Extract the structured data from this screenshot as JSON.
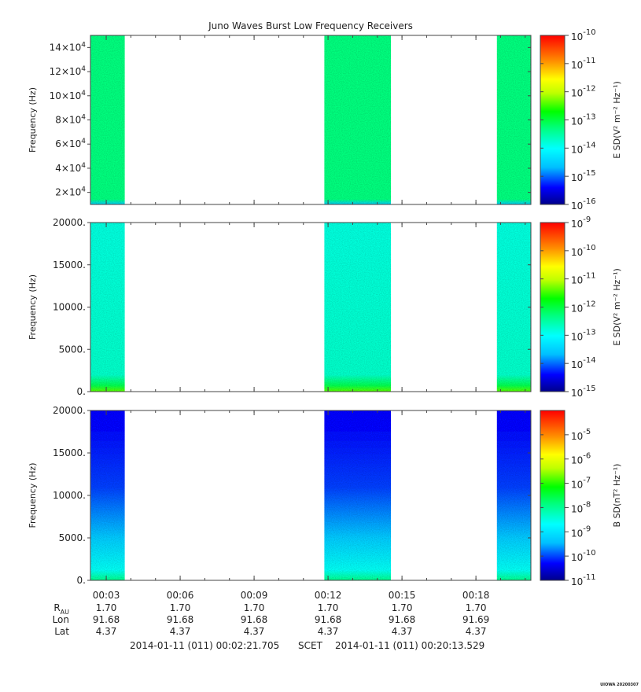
{
  "chart_data": {
    "type": "heatmap",
    "title": "Juno Waves Burst Low Frequency Receivers",
    "x_ticks": [
      "00:03",
      "00:06",
      "00:09",
      "00:12",
      "00:15",
      "00:18"
    ],
    "x_tick_minutes": [
      3,
      6,
      9,
      12,
      15,
      18
    ],
    "x_range_minutes": [
      2.36,
      20.23
    ],
    "data_bursts_minutes": [
      [
        2.36,
        3.75
      ],
      [
        11.85,
        14.55
      ],
      [
        18.85,
        20.23
      ]
    ],
    "panels": [
      {
        "id": "top",
        "ylabel": "Frequency (Hz)",
        "ylim": [
          10000,
          150000
        ],
        "y_ticks": [
          {
            "value": 20000,
            "mant": "2×10",
            "exp": "4"
          },
          {
            "value": 40000,
            "mant": "4×10",
            "exp": "4"
          },
          {
            "value": 60000,
            "mant": "6×10",
            "exp": "4"
          },
          {
            "value": 80000,
            "mant": "8×10",
            "exp": "4"
          },
          {
            "value": 100000,
            "mant": "10×10",
            "exp": "4"
          },
          {
            "value": 120000,
            "mant": "12×10",
            "exp": "4"
          },
          {
            "value": 140000,
            "mant": "14×10",
            "exp": "4"
          }
        ],
        "colorbar_label": "E SD(V² m⁻² Hz⁻¹)",
        "colorbar_exp_range": [
          -16,
          -10
        ],
        "colorbar_ticks": [
          "-10",
          "-11",
          "-12",
          "-13",
          "-14",
          "-15",
          "-16"
        ],
        "bands": [
          {
            "f": 0.0,
            "level": 0.25
          },
          {
            "f": 0.03,
            "level": 0.45
          },
          {
            "f": 1.0,
            "level": 0.45
          }
        ]
      },
      {
        "id": "middle",
        "ylabel": "Frequency (Hz)",
        "ylim": [
          0,
          20000
        ],
        "y_ticks": [
          {
            "value": 0,
            "label": "0."
          },
          {
            "value": 5000,
            "label": "5000."
          },
          {
            "value": 10000,
            "label": "10000."
          },
          {
            "value": 15000,
            "label": "15000."
          },
          {
            "value": 20000,
            "label": "20000."
          }
        ],
        "colorbar_label": "E SD(V² m⁻² Hz⁻¹)",
        "colorbar_exp_range": [
          -15,
          -9
        ],
        "colorbar_ticks": [
          "-9",
          "-10",
          "-11",
          "-12",
          "-13",
          "-14",
          "-15"
        ],
        "bands": [
          {
            "f": 0.0,
            "level": 0.6
          },
          {
            "f": 0.04,
            "level": 0.48
          },
          {
            "f": 0.1,
            "level": 0.38
          },
          {
            "f": 1.0,
            "level": 0.36
          }
        ]
      },
      {
        "id": "bottom",
        "ylabel": "Frequency (Hz)",
        "ylim": [
          0,
          20000
        ],
        "y_ticks": [
          {
            "value": 0,
            "label": "0."
          },
          {
            "value": 5000,
            "label": "5000."
          },
          {
            "value": 10000,
            "label": "10000."
          },
          {
            "value": 15000,
            "label": "15000."
          },
          {
            "value": 20000,
            "label": "20000."
          }
        ],
        "colorbar_label": "B SD(nT² Hz⁻¹)",
        "colorbar_exp_range": [
          -11,
          -4
        ],
        "colorbar_ticks": [
          "-5",
          "-6",
          "-7",
          "-8",
          "-9",
          "-10",
          "-11"
        ],
        "colorbar_tick_values": [
          -5,
          -6,
          -7,
          -8,
          -9,
          -10,
          -11
        ],
        "bands": [
          {
            "f": 0.0,
            "level": 0.44
          },
          {
            "f": 0.06,
            "level": 0.34
          },
          {
            "f": 0.25,
            "level": 0.24
          },
          {
            "f": 0.55,
            "level": 0.14
          },
          {
            "f": 1.0,
            "level": 0.1
          }
        ]
      }
    ],
    "ephemeris": {
      "rows": [
        {
          "label": "R",
          "sub": "AU",
          "values": [
            "1.70",
            "1.70",
            "1.70",
            "1.70",
            "1.70",
            "1.70"
          ]
        },
        {
          "label": "Lon",
          "sub": "",
          "values": [
            "91.68",
            "91.68",
            "91.68",
            "91.68",
            "91.68",
            "91.69"
          ]
        },
        {
          "label": "Lat",
          "sub": "",
          "values": [
            "4.37",
            "4.37",
            "4.37",
            "4.37",
            "4.37",
            "4.37"
          ]
        }
      ]
    },
    "time_range": {
      "start": "2014-01-11 (011) 00:02:21.705",
      "label": "SCET",
      "end": "2014-01-11 (011) 00:20:13.529"
    },
    "stamp": "UIOWA 20200307"
  }
}
